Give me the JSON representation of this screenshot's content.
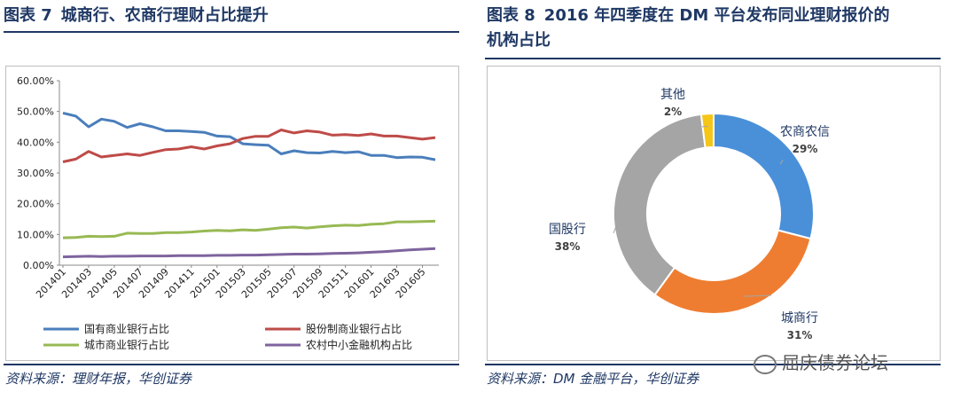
{
  "left": {
    "figure_label": "图表 7",
    "title": "城商行、农商行理财占比提升",
    "source": "资料来源：理财年报，华创证券"
  },
  "right": {
    "figure_label": "图表 8",
    "title_line1": "2016 年四季度在 DM 平台发布同业理财报价的",
    "title_line2": "机构占比",
    "source": "资料来源：DM 金融平台，华创证券"
  },
  "watermark": "屈庆债券论坛",
  "chart_data": [
    {
      "type": "line",
      "title": "",
      "ylim": [
        0,
        0.6
      ],
      "yticks": [
        "0.00%",
        "10.00%",
        "20.00%",
        "30.00%",
        "40.00%",
        "50.00%",
        "60.00%"
      ],
      "x": [
        "201401",
        "201402",
        "201403",
        "201404",
        "201405",
        "201406",
        "201407",
        "201408",
        "201409",
        "201410",
        "201411",
        "201412",
        "201501",
        "201502",
        "201503",
        "201504",
        "201505",
        "201506",
        "201507",
        "201508",
        "201509",
        "201510",
        "201511",
        "201512",
        "201601",
        "201602",
        "201603",
        "201604",
        "201605",
        "201606"
      ],
      "xtick_labels": [
        "201401",
        "201403",
        "201405",
        "201407",
        "201409",
        "201411",
        "201501",
        "201503",
        "201505",
        "201507",
        "201509",
        "201511",
        "201601",
        "201603",
        "201605"
      ],
      "legend_position": "bottom",
      "series": [
        {
          "name": "国有商业银行占比",
          "color": "#4a7ebb",
          "values": [
            0.495,
            0.485,
            0.45,
            0.475,
            0.468,
            0.448,
            0.46,
            0.45,
            0.437,
            0.437,
            0.435,
            0.432,
            0.42,
            0.418,
            0.395,
            0.392,
            0.39,
            0.362,
            0.372,
            0.366,
            0.365,
            0.37,
            0.366,
            0.369,
            0.357,
            0.357,
            0.35,
            0.352,
            0.351,
            0.343
          ]
        },
        {
          "name": "股份制商业银行占比",
          "color": "#be4b48",
          "values": [
            0.336,
            0.345,
            0.37,
            0.352,
            0.357,
            0.362,
            0.357,
            0.367,
            0.376,
            0.378,
            0.385,
            0.378,
            0.388,
            0.395,
            0.412,
            0.419,
            0.419,
            0.44,
            0.43,
            0.437,
            0.433,
            0.423,
            0.425,
            0.422,
            0.427,
            0.42,
            0.42,
            0.415,
            0.41,
            0.415
          ]
        },
        {
          "name": "城市商业银行占比",
          "color": "#98b954",
          "values": [
            0.089,
            0.09,
            0.094,
            0.093,
            0.094,
            0.104,
            0.103,
            0.103,
            0.106,
            0.106,
            0.108,
            0.111,
            0.113,
            0.112,
            0.115,
            0.113,
            0.117,
            0.122,
            0.124,
            0.121,
            0.125,
            0.128,
            0.13,
            0.129,
            0.133,
            0.135,
            0.141,
            0.141,
            0.142,
            0.143
          ]
        },
        {
          "name": "农村中小金融机构占比",
          "color": "#7e649e",
          "values": [
            0.027,
            0.028,
            0.029,
            0.028,
            0.029,
            0.029,
            0.03,
            0.03,
            0.03,
            0.031,
            0.031,
            0.031,
            0.032,
            0.032,
            0.033,
            0.033,
            0.034,
            0.035,
            0.036,
            0.036,
            0.037,
            0.038,
            0.039,
            0.04,
            0.042,
            0.044,
            0.047,
            0.05,
            0.052,
            0.054
          ]
        }
      ]
    },
    {
      "type": "pie",
      "donut": true,
      "slices": [
        {
          "label": "农商农信",
          "pct_label": "29%",
          "value": 29,
          "color": "#4a90d9"
        },
        {
          "label": "城商行",
          "pct_label": "31%",
          "value": 31,
          "color": "#ee7d31"
        },
        {
          "label": "国股行",
          "pct_label": "38%",
          "value": 38,
          "color": "#a5a5a5"
        },
        {
          "label": "其他",
          "pct_label": "2%",
          "value": 2,
          "color": "#f5c518"
        }
      ]
    }
  ]
}
